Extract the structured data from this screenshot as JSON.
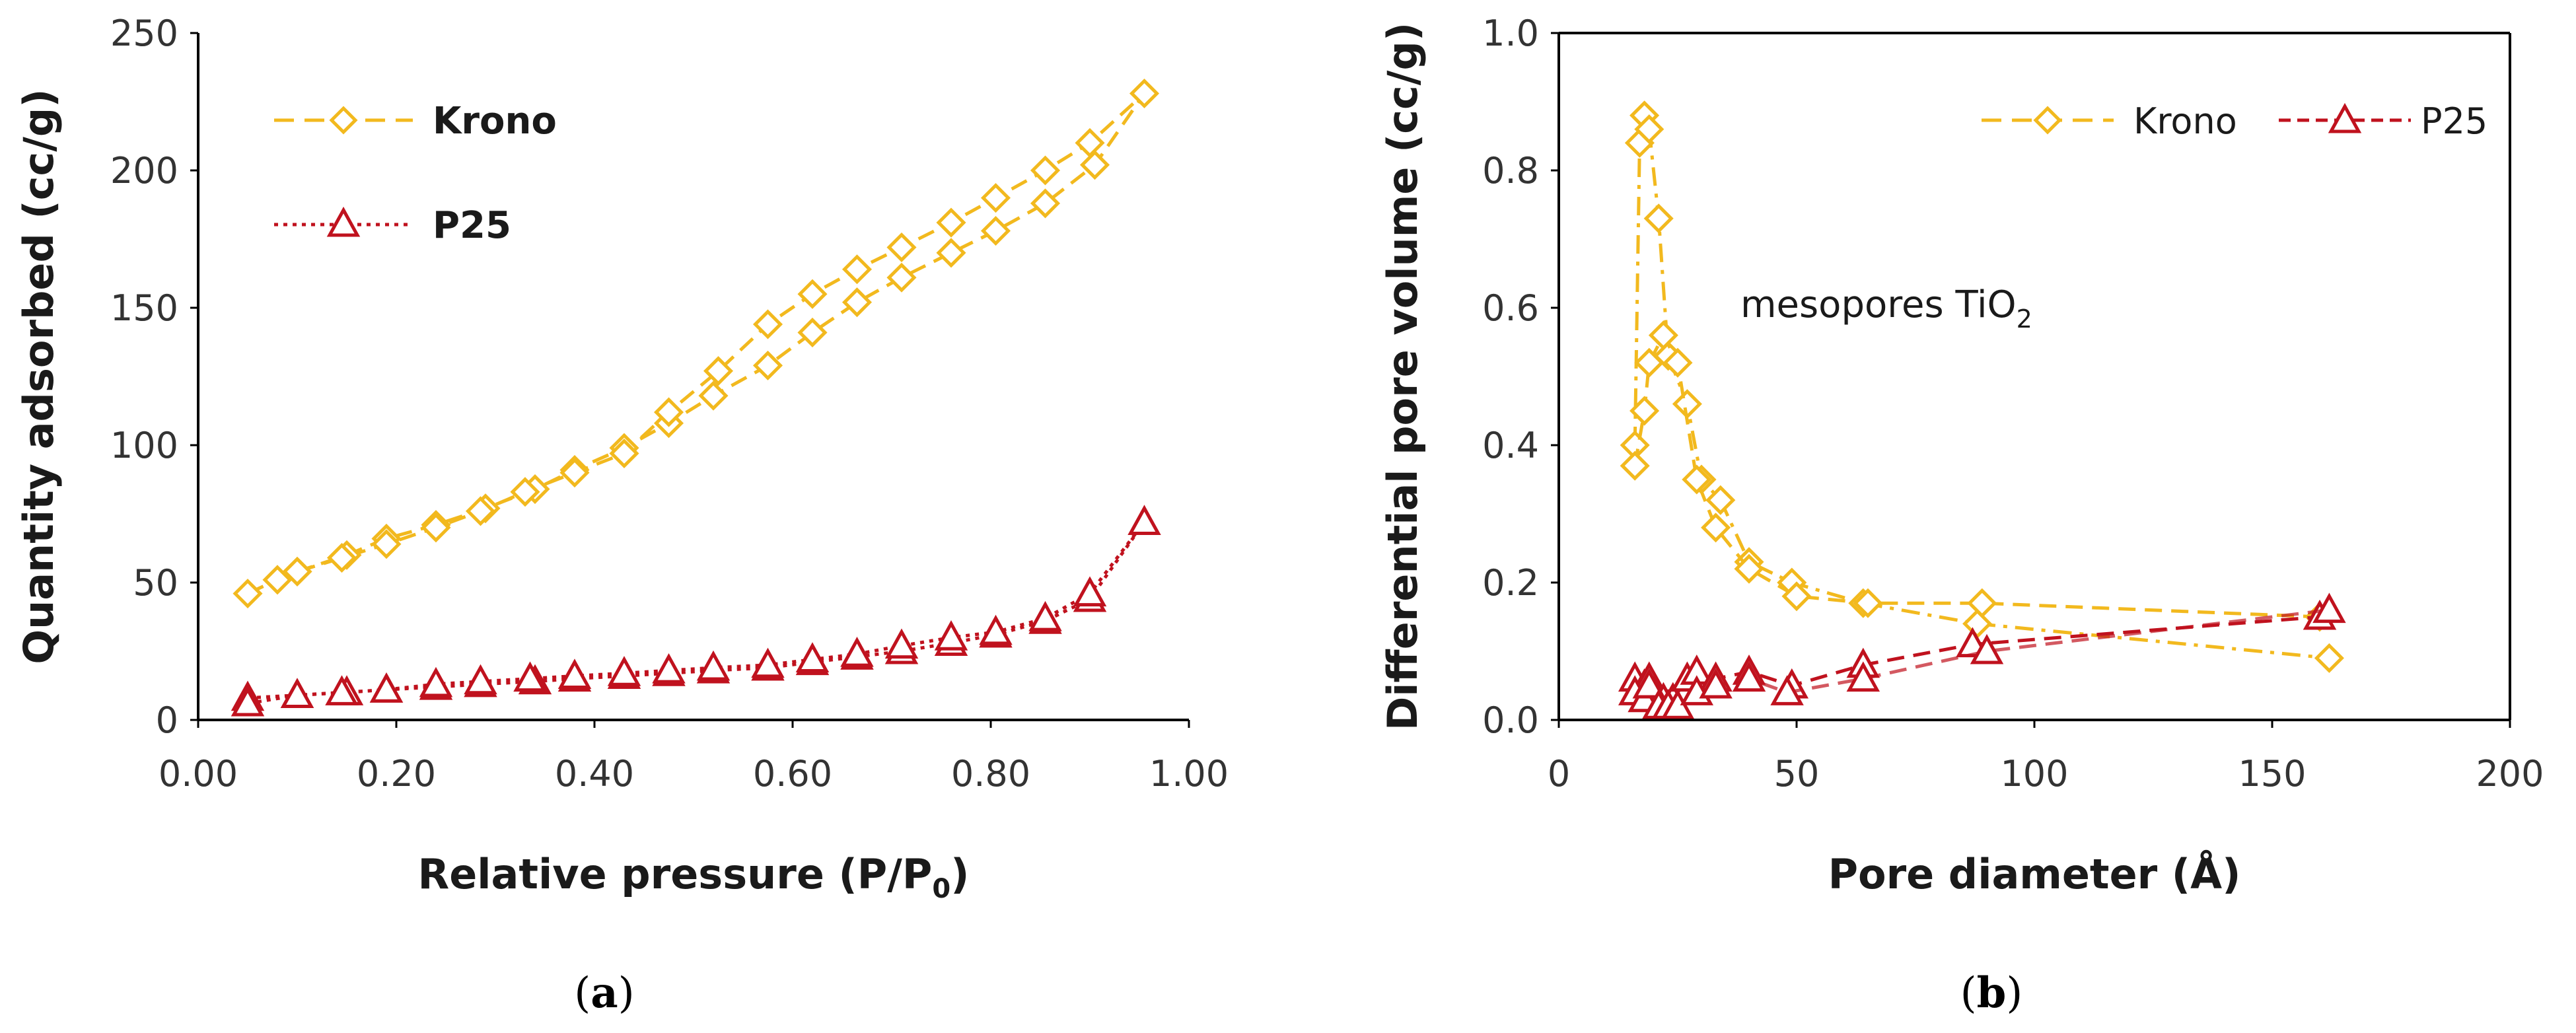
{
  "colors": {
    "krono": "#F2B91E",
    "p25": "#C0121E",
    "axis": "#000000"
  },
  "chart_data": [
    {
      "type": "line",
      "panel_label": {
        "open": "(",
        "letter": "a",
        "close": ")"
      },
      "xlabel_pre": "Relative pressure (P/P",
      "xlabel_sub": "0",
      "xlabel_post": ")",
      "ylabel": "Quantity adsorbed (cc/g)",
      "xlim": [
        0,
        1.0
      ],
      "ylim": [
        0,
        250
      ],
      "xticks": [
        0,
        0.2,
        0.4,
        0.6,
        0.8,
        1.0
      ],
      "xtick_labels": [
        "0.00",
        "0.20",
        "0.40",
        "0.60",
        "0.80",
        "1.00"
      ],
      "yticks": [
        0,
        50,
        100,
        150,
        200,
        250
      ],
      "ytick_labels": [
        "0",
        "50",
        "100",
        "150",
        "200",
        "250"
      ],
      "legend_position": "top-left",
      "series": [
        {
          "name": "Krono",
          "marker": "diamond",
          "style": "dashed",
          "color": "#F2B91E",
          "x": [
            0.05,
            0.08,
            0.1,
            0.15,
            0.19,
            0.24,
            0.29,
            0.34,
            0.38,
            0.43,
            0.475,
            0.52,
            0.575,
            0.62,
            0.665,
            0.71,
            0.76,
            0.805,
            0.855,
            0.905,
            0.955,
            0.9,
            0.855,
            0.805,
            0.76,
            0.71,
            0.665,
            0.62,
            0.575,
            0.525,
            0.475,
            0.43,
            0.38,
            0.33,
            0.285,
            0.24,
            0.19,
            0.145,
            0.1
          ],
          "y": [
            46,
            51,
            54,
            60,
            66,
            71,
            77,
            84,
            91,
            99,
            108,
            118,
            129,
            141,
            152,
            161,
            170,
            178,
            188,
            202,
            228,
            210,
            200,
            190,
            181,
            172,
            164,
            155,
            144,
            127,
            112,
            97,
            90,
            83,
            76,
            70,
            64,
            59,
            54
          ]
        },
        {
          "name": "P25",
          "marker": "triangle",
          "style": "dotted",
          "color": "#C0121E",
          "x": [
            0.05,
            0.1,
            0.15,
            0.19,
            0.24,
            0.285,
            0.34,
            0.38,
            0.43,
            0.475,
            0.52,
            0.575,
            0.62,
            0.665,
            0.71,
            0.76,
            0.805,
            0.855,
            0.9,
            0.955,
            0.9,
            0.855,
            0.805,
            0.76,
            0.71,
            0.665,
            0.62,
            0.575,
            0.52,
            0.475,
            0.43,
            0.38,
            0.335,
            0.285,
            0.24,
            0.19,
            0.145,
            0.1,
            0.05
          ],
          "y": [
            8,
            9,
            10,
            11,
            12,
            13,
            14,
            15,
            16,
            17,
            18,
            19,
            21,
            23,
            25,
            28,
            31,
            36,
            44,
            72,
            46,
            37,
            32,
            30,
            27,
            24,
            22,
            20,
            19,
            18,
            17,
            16,
            15,
            14,
            13,
            11,
            10,
            9,
            6
          ]
        }
      ]
    },
    {
      "type": "line",
      "panel_label": {
        "open": "(",
        "letter": "b",
        "close": ")"
      },
      "xlabel": "Pore diameter (Å)",
      "ylabel": "Differential pore volume (cc/g)",
      "xlim": [
        0,
        200
      ],
      "ylim": [
        0,
        1.0
      ],
      "xticks": [
        0,
        50,
        100,
        150,
        200
      ],
      "xtick_labels": [
        "0",
        "50",
        "100",
        "150",
        "200"
      ],
      "yticks": [
        0,
        0.2,
        0.4,
        0.6,
        0.8,
        1.0
      ],
      "ytick_labels": [
        "0.0",
        "0.2",
        "0.4",
        "0.6",
        "0.8",
        "1.0"
      ],
      "legend_position": "top-right",
      "annotation_pre": "mesopores TiO",
      "annotation_sub": "2",
      "series": [
        {
          "name": "Krono",
          "marker": "diamond",
          "style": "dash-dot",
          "color": "#F2B91E",
          "branch": "adsorption",
          "x": [
            16,
            17,
            18,
            19,
            21,
            23,
            27,
            30,
            34,
            40,
            49,
            64,
            88,
            162
          ],
          "y": [
            0.4,
            0.84,
            0.88,
            0.86,
            0.73,
            0.53,
            0.46,
            0.35,
            0.32,
            0.23,
            0.2,
            0.17,
            0.14,
            0.09
          ]
        },
        {
          "name": "Krono",
          "marker": "diamond",
          "style": "dashed",
          "color": "#F2B91E",
          "branch": "desorption",
          "x": [
            16,
            18,
            19,
            22,
            25,
            29,
            33,
            40,
            50,
            65,
            89,
            160
          ],
          "y": [
            0.37,
            0.45,
            0.52,
            0.56,
            0.52,
            0.35,
            0.28,
            0.22,
            0.18,
            0.17,
            0.17,
            0.15
          ]
        },
        {
          "name": "P25",
          "marker": "triangle",
          "style": "dashed",
          "color": "#C0121E",
          "branch": "adsorption",
          "x": [
            16,
            18,
            19,
            20,
            22,
            24,
            27,
            29,
            33,
            40,
            49,
            64,
            87,
            160
          ],
          "y": [
            0.06,
            0.05,
            0.06,
            0.04,
            0.03,
            0.03,
            0.06,
            0.07,
            0.06,
            0.07,
            0.05,
            0.08,
            0.11,
            0.15
          ]
        },
        {
          "name": "P25",
          "marker": "triangle",
          "style": "dashed",
          "color": "#C0121E",
          "branch": "desorption",
          "x": [
            16,
            18,
            19,
            21,
            23,
            25,
            29,
            33,
            40,
            48,
            64,
            90,
            162
          ],
          "y": [
            0.04,
            0.03,
            0.05,
            0.02,
            0.02,
            0.02,
            0.04,
            0.05,
            0.06,
            0.04,
            0.06,
            0.1,
            0.16
          ]
        }
      ],
      "legend": [
        {
          "name": "Krono",
          "marker": "diamond",
          "style": "dashed",
          "color": "#F2B91E"
        },
        {
          "name": "P25",
          "marker": "triangle",
          "style": "dashed",
          "color": "#C0121E"
        }
      ]
    }
  ]
}
